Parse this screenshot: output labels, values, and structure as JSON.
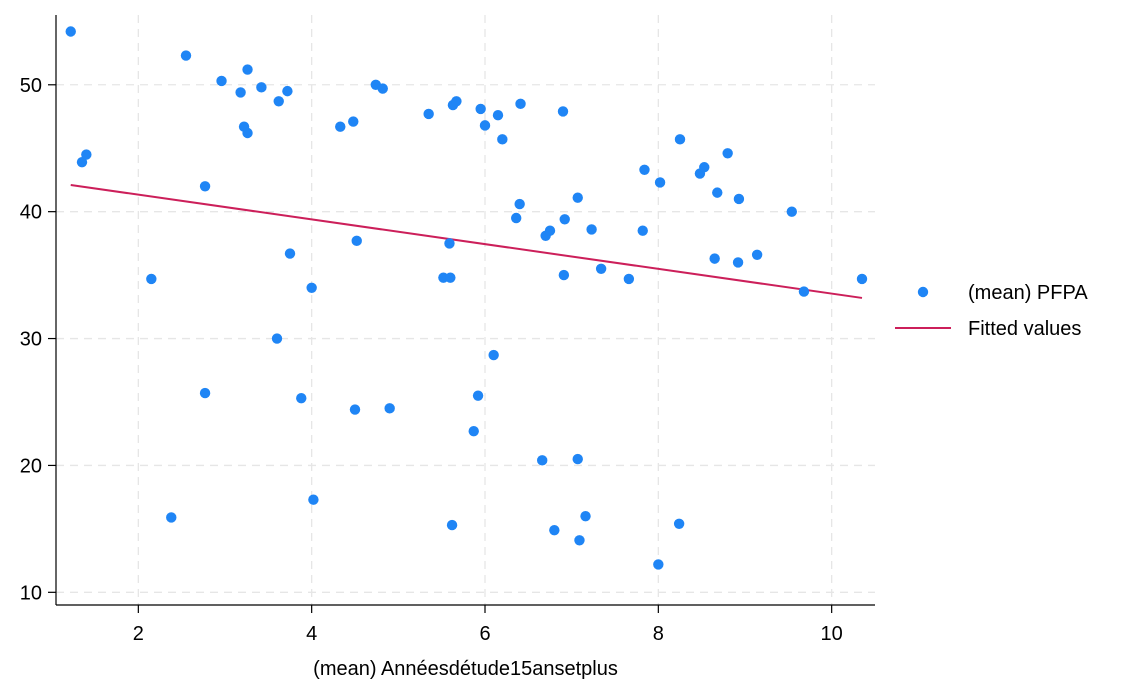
{
  "chart_data": {
    "type": "scatter",
    "xlabel": "(mean) Annéesdétude15ansetplus",
    "ylabel": "",
    "xlim": [
      1.05,
      10.5
    ],
    "ylim": [
      9,
      55.5
    ],
    "x_ticks": [
      2,
      4,
      6,
      8,
      10
    ],
    "y_ticks": [
      10,
      20,
      30,
      40,
      50
    ],
    "grid": true,
    "legend_position": "right",
    "colors": {
      "scatter": "#1f85f5",
      "fit": "#cc1f5a"
    },
    "series": [
      {
        "name": "(mean) PFPA",
        "type": "scatter",
        "points": [
          [
            1.22,
            54.2
          ],
          [
            1.35,
            43.9
          ],
          [
            1.4,
            44.5
          ],
          [
            2.15,
            34.7
          ],
          [
            2.38,
            15.9
          ],
          [
            2.55,
            52.3
          ],
          [
            2.77,
            42.0
          ],
          [
            2.77,
            25.7
          ],
          [
            2.96,
            50.3
          ],
          [
            3.18,
            49.4
          ],
          [
            3.22,
            46.7
          ],
          [
            3.26,
            46.2
          ],
          [
            3.26,
            51.2
          ],
          [
            3.42,
            49.8
          ],
          [
            3.6,
            30.0
          ],
          [
            3.62,
            48.7
          ],
          [
            3.72,
            49.5
          ],
          [
            3.75,
            36.7
          ],
          [
            3.88,
            25.3
          ],
          [
            4.0,
            34.0
          ],
          [
            4.02,
            17.3
          ],
          [
            4.33,
            46.7
          ],
          [
            4.48,
            47.1
          ],
          [
            4.5,
            24.4
          ],
          [
            4.52,
            37.7
          ],
          [
            4.74,
            50.0
          ],
          [
            4.82,
            49.7
          ],
          [
            4.9,
            24.5
          ],
          [
            5.35,
            47.7
          ],
          [
            5.52,
            34.8
          ],
          [
            5.6,
            34.8
          ],
          [
            5.59,
            37.5
          ],
          [
            5.62,
            15.3
          ],
          [
            5.63,
            48.4
          ],
          [
            5.67,
            48.7
          ],
          [
            5.87,
            22.7
          ],
          [
            5.92,
            25.5
          ],
          [
            5.95,
            48.1
          ],
          [
            6.0,
            46.8
          ],
          [
            6.1,
            28.7
          ],
          [
            6.15,
            47.6
          ],
          [
            6.2,
            45.7
          ],
          [
            6.36,
            39.5
          ],
          [
            6.4,
            40.6
          ],
          [
            6.41,
            48.5
          ],
          [
            6.66,
            20.4
          ],
          [
            6.7,
            38.1
          ],
          [
            6.75,
            38.5
          ],
          [
            6.8,
            14.9
          ],
          [
            6.9,
            47.9
          ],
          [
            6.91,
            35.0
          ],
          [
            6.92,
            39.4
          ],
          [
            7.07,
            41.1
          ],
          [
            7.07,
            20.5
          ],
          [
            7.09,
            14.1
          ],
          [
            7.16,
            16.0
          ],
          [
            7.23,
            38.6
          ],
          [
            7.34,
            35.5
          ],
          [
            7.66,
            34.7
          ],
          [
            7.82,
            38.5
          ],
          [
            7.84,
            43.3
          ],
          [
            8.0,
            12.2
          ],
          [
            8.02,
            42.3
          ],
          [
            8.24,
            15.4
          ],
          [
            8.25,
            45.7
          ],
          [
            8.48,
            43.0
          ],
          [
            8.53,
            43.5
          ],
          [
            8.65,
            36.3
          ],
          [
            8.68,
            41.5
          ],
          [
            8.8,
            44.6
          ],
          [
            8.92,
            36.0
          ],
          [
            8.93,
            41.0
          ],
          [
            9.14,
            36.6
          ],
          [
            9.54,
            40.0
          ],
          [
            9.68,
            33.7
          ],
          [
            10.35,
            34.7
          ]
        ]
      },
      {
        "name": "Fitted values",
        "type": "line",
        "points": [
          [
            1.22,
            42.1
          ],
          [
            10.35,
            33.2
          ]
        ]
      }
    ]
  }
}
